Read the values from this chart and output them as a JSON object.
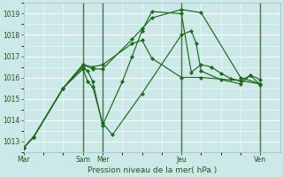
{
  "xlabel": "Pression niveau de la mer( hPa )",
  "bg_color": "#cce8e8",
  "grid_major_color": "#ffffff",
  "grid_minor_color": "#ddeee8",
  "line_color": "#1a6b1a",
  "ylim": [
    1012.5,
    1019.5
  ],
  "yticks": [
    1013,
    1014,
    1015,
    1016,
    1017,
    1018,
    1019
  ],
  "xtick_labels": [
    "Mar",
    "",
    "Sam",
    "Mer",
    "",
    "Jeu",
    "",
    "Ven"
  ],
  "xtick_positions": [
    0,
    2,
    3,
    4,
    6,
    8,
    10,
    12
  ],
  "vlines_major": [
    3,
    4,
    8,
    12
  ],
  "xlim": [
    0,
    13
  ],
  "lines": [
    {
      "x": [
        0,
        0.5,
        2,
        3,
        3.5,
        4,
        5.5,
        6,
        6.5,
        8,
        9,
        11,
        12
      ],
      "y": [
        1012.7,
        1013.2,
        1015.5,
        1016.6,
        1016.4,
        1016.4,
        1017.8,
        1018.3,
        1018.8,
        1019.2,
        1019.05,
        1016.0,
        1015.7
      ]
    },
    {
      "x": [
        0,
        0.5,
        2,
        3,
        3.5,
        4,
        5.5,
        6,
        6.5,
        8,
        9,
        11,
        12
      ],
      "y": [
        1012.7,
        1013.2,
        1015.5,
        1016.6,
        1016.5,
        1016.6,
        1017.6,
        1017.75,
        1016.9,
        1016.0,
        1016.0,
        1015.85,
        1015.7
      ]
    },
    {
      "x": [
        0,
        0.5,
        2,
        3,
        3.25,
        3.5,
        4,
        4.5,
        6,
        8,
        8.5,
        8.75,
        9,
        10,
        11,
        11.5,
        12
      ],
      "y": [
        1012.7,
        1013.2,
        1015.5,
        1016.4,
        1015.8,
        1015.55,
        1013.85,
        1013.3,
        1015.25,
        1018.0,
        1018.2,
        1017.6,
        1016.3,
        1015.9,
        1015.7,
        1016.1,
        1015.9
      ]
    },
    {
      "x": [
        0,
        0.5,
        2,
        3,
        3.25,
        3.5,
        4,
        5,
        5.5,
        6,
        6.5,
        8,
        8.5,
        9,
        9.5,
        10,
        10.5,
        11,
        11.5,
        12
      ],
      "y": [
        1012.7,
        1013.2,
        1015.5,
        1016.5,
        1016.3,
        1015.8,
        1013.75,
        1015.8,
        1017.0,
        1018.2,
        1019.1,
        1019.0,
        1016.25,
        1016.6,
        1016.5,
        1016.2,
        1015.95,
        1015.85,
        1016.1,
        1015.65
      ]
    }
  ]
}
